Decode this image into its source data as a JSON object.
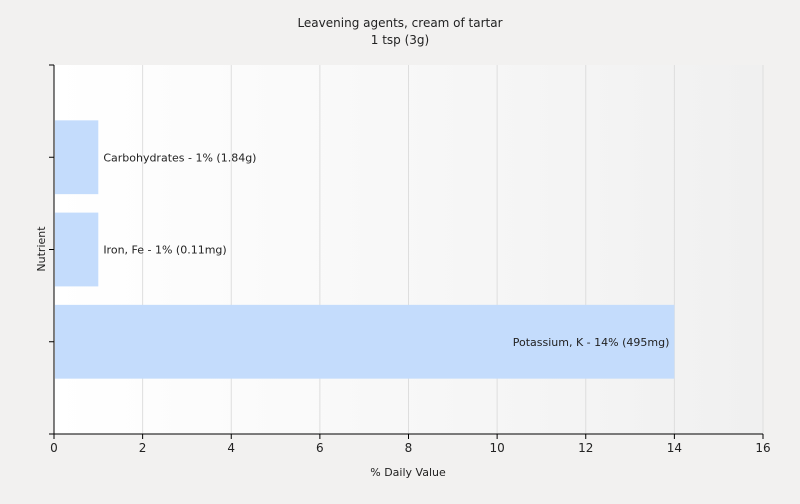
{
  "chart_data": {
    "type": "bar",
    "orientation": "horizontal",
    "title": "Leavening agents, cream of tartar",
    "subtitle": "1 tsp (3g)",
    "xlabel": "% Daily Value",
    "ylabel": "Nutrient",
    "xlim": [
      0,
      16
    ],
    "xticks": [
      0,
      2,
      4,
      6,
      8,
      10,
      12,
      14,
      16
    ],
    "grid": true,
    "legend": "none",
    "categories": [
      "Carbohydrates",
      "Iron, Fe",
      "Potassium, K"
    ],
    "values": [
      1,
      1,
      14
    ],
    "labels": [
      "Carbohydrates - 1% (1.84g)",
      "Iron, Fe - 1% (0.11mg)",
      "Potassium, K - 14% (495mg)"
    ],
    "colors": {
      "bar": "#c4dcfc",
      "grid": "#dedede",
      "axis": "#000000",
      "background": "#f2f1f0",
      "plot_background": "#fafafa"
    }
  }
}
